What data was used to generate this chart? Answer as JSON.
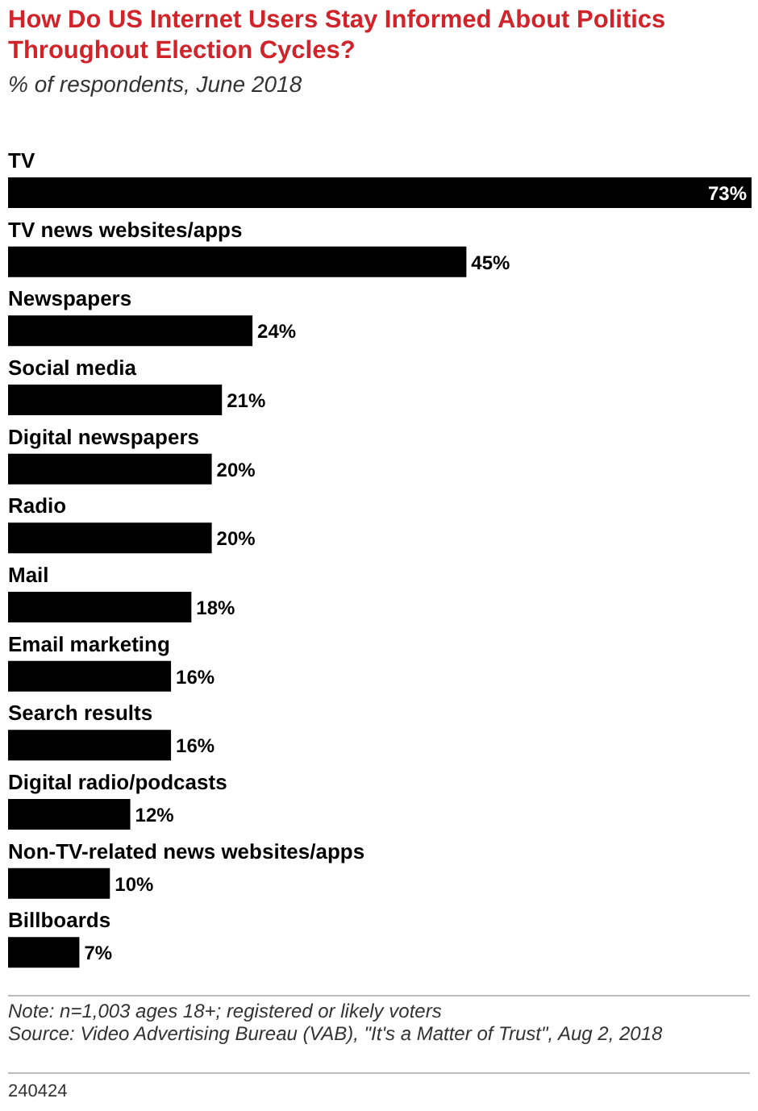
{
  "chart_data": {
    "type": "bar",
    "orientation": "horizontal",
    "title": "How Do US Internet Users Stay Informed About Politics Throughout Election Cycles?",
    "subtitle": "% of respondents, June 2018",
    "categories": [
      "TV",
      "TV news websites/apps",
      "Newspapers",
      "Social media",
      "Digital newspapers",
      "Radio",
      "Mail",
      "Email marketing",
      "Search results",
      "Digital radio/podcasts",
      "Non-TV-related news websites/apps",
      "Billboards"
    ],
    "values": [
      73,
      45,
      24,
      21,
      20,
      20,
      18,
      16,
      16,
      12,
      10,
      7
    ],
    "value_labels": [
      "73%",
      "45%",
      "24%",
      "21%",
      "20%",
      "20%",
      "18%",
      "16%",
      "16%",
      "12%",
      "10%",
      "7%"
    ],
    "color": "#000000",
    "annotations": [
      "Note: n=1,003 ages 18+; registered or likely voters",
      "Source: Video Advertising Bureau (VAB), \"It's a Matter of Trust\", Aug 2, 2018",
      "240424"
    ]
  }
}
